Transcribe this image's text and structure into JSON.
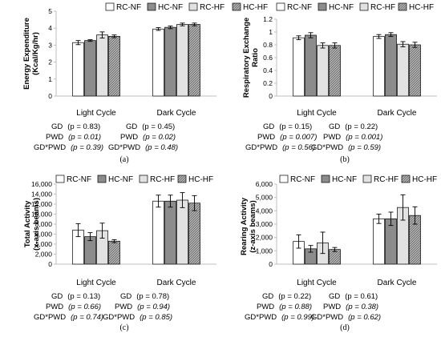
{
  "chart_data": [
    {
      "type": "bar",
      "panel_label": "(a)",
      "ylabel": [
        "Energy Expenditure",
        "(Kcal/Kg/hr)"
      ],
      "categories": [
        "Light Cycle",
        "Dark Cycle"
      ],
      "ylim": [
        0,
        5
      ],
      "yticks": [
        "0",
        "1",
        "2",
        "3",
        "4",
        "5"
      ],
      "ytick_values": [
        0,
        1,
        2,
        3,
        4,
        5
      ],
      "series": [
        {
          "name": "RC-NF",
          "values": [
            3.15,
            3.95
          ],
          "errors": [
            0.12,
            0.08
          ]
        },
        {
          "name": "HC-NF",
          "values": [
            3.27,
            4.05
          ],
          "errors": [
            0.05,
            0.08
          ]
        },
        {
          "name": "RC-HF",
          "values": [
            3.6,
            4.22
          ],
          "errors": [
            0.18,
            0.08
          ]
        },
        {
          "name": "HC-HF",
          "values": [
            3.52,
            4.22
          ],
          "errors": [
            0.08,
            0.08
          ]
        }
      ],
      "stats": [
        [
          [
            "GD",
            "(p = 0.83)"
          ],
          [
            "PWD",
            "(p = 0.01)"
          ],
          [
            "GD*PWD",
            "(p = 0.39)"
          ]
        ],
        [
          [
            "GD",
            "(p = 0.45)"
          ],
          [
            "PWD",
            "(p = 0.02)"
          ],
          [
            "GD*PWD",
            "(p = 0.48)"
          ]
        ]
      ]
    },
    {
      "type": "bar",
      "panel_label": "(b)",
      "ylabel": [
        "Respiratory Exchange",
        "Ratio"
      ],
      "categories": [
        "Light Cycle",
        "Dark Cycle"
      ],
      "ylim": [
        0,
        1.2
      ],
      "yticks": [
        "0",
        "0.2",
        "0.4",
        "0.6",
        "0.8",
        "1",
        "1.2"
      ],
      "ytick_values": [
        0,
        0.2,
        0.4,
        0.6,
        0.8,
        1.0,
        1.2
      ],
      "series": [
        {
          "name": "RC-NF",
          "values": [
            0.91,
            0.93
          ],
          "errors": [
            0.03,
            0.03
          ]
        },
        {
          "name": "HC-NF",
          "values": [
            0.95,
            0.96
          ],
          "errors": [
            0.04,
            0.03
          ]
        },
        {
          "name": "RC-HF",
          "values": [
            0.79,
            0.81
          ],
          "errors": [
            0.04,
            0.04
          ]
        },
        {
          "name": "HC-HF",
          "values": [
            0.79,
            0.8
          ],
          "errors": [
            0.04,
            0.04
          ]
        }
      ],
      "stats": [
        [
          [
            "GD",
            "(p = 0.15)"
          ],
          [
            "PWD",
            "(p = 0.007)"
          ],
          [
            "GD*PWD",
            "(p = 0.56)"
          ]
        ],
        [
          [
            "GD",
            "(p = 0.22)"
          ],
          [
            "PWD",
            "(p = 0.001)"
          ],
          [
            "GD*PWD",
            "(p = 0.59)"
          ]
        ]
      ]
    },
    {
      "type": "bar",
      "panel_label": "(c)",
      "ylabel": [
        "Total Activity",
        "(x-axis beams)"
      ],
      "categories": [
        "Light Cycle",
        "Dark Cycle"
      ],
      "ylim": [
        0,
        16000
      ],
      "yticks": [
        "0",
        "2,000",
        "4,000",
        "6,000",
        "8,000",
        "10,000",
        "12,000",
        "14,000",
        "16,000"
      ],
      "ytick_values": [
        0,
        2000,
        4000,
        6000,
        8000,
        10000,
        12000,
        14000,
        16000
      ],
      "series": [
        {
          "name": "RC-NF",
          "values": [
            6800,
            12600
          ],
          "errors": [
            1300,
            1200
          ]
        },
        {
          "name": "HC-NF",
          "values": [
            5500,
            12600
          ],
          "errors": [
            800,
            1200
          ]
        },
        {
          "name": "RC-HF",
          "values": [
            6700,
            12800
          ],
          "errors": [
            1500,
            1500
          ]
        },
        {
          "name": "HC-HF",
          "values": [
            4600,
            12200
          ],
          "errors": [
            300,
            1500
          ]
        }
      ],
      "stats": [
        [
          [
            "GD",
            "(p = 0.13)"
          ],
          [
            "PWD",
            "(p = 0.66)"
          ],
          [
            "GD*PWD",
            "(p = 0.74)"
          ]
        ],
        [
          [
            "GD",
            "(p = 0.78)"
          ],
          [
            "PWD",
            "(p = 0.94)"
          ],
          [
            "GD*PWD",
            "(p = 0.85)"
          ]
        ]
      ]
    },
    {
      "type": "bar",
      "panel_label": "(d)",
      "ylabel": [
        "Rearing Activity",
        "(z-axis beams)"
      ],
      "categories": [
        "Light Cycle",
        "Dark Cycle"
      ],
      "ylim": [
        0,
        6000
      ],
      "yticks": [
        "0",
        "1,000",
        "2,000",
        "3,000",
        "4,000",
        "5,000",
        "6,000"
      ],
      "ytick_values": [
        0,
        1000,
        2000,
        3000,
        4000,
        5000,
        6000
      ],
      "series": [
        {
          "name": "RC-NF",
          "values": [
            1700,
            3400
          ],
          "errors": [
            500,
            350
          ]
        },
        {
          "name": "HC-NF",
          "values": [
            1150,
            3400
          ],
          "errors": [
            250,
            500
          ]
        },
        {
          "name": "RC-HF",
          "values": [
            1600,
            4250
          ],
          "errors": [
            800,
            950
          ]
        },
        {
          "name": "HC-HF",
          "values": [
            1100,
            3650
          ],
          "errors": [
            150,
            650
          ]
        }
      ],
      "stats": [
        [
          [
            "GD",
            "(p = 0.22)"
          ],
          [
            "PWD",
            "(p = 0.88)"
          ],
          [
            "GD*PWD",
            "(p = 0.99)"
          ]
        ],
        [
          [
            "GD",
            "(p = 0.61)"
          ],
          [
            "PWD",
            "(p = 0.38)"
          ],
          [
            "GD*PWD",
            "(p = 0.62)"
          ]
        ]
      ]
    }
  ],
  "colors": {
    "RC-NF": "#ffffff",
    "HC-NF": "#8c8c8c",
    "RC-HF": "#e2e2e2",
    "HC-HF": "#9e9e9e",
    "axis": "#bfbfbf",
    "bar_edge": "#000000"
  },
  "stat_italic_rows": [
    [
      false,
      true,
      true
    ],
    [
      false,
      true,
      true
    ],
    [
      false,
      true,
      true
    ],
    [
      false,
      true,
      true
    ]
  ]
}
